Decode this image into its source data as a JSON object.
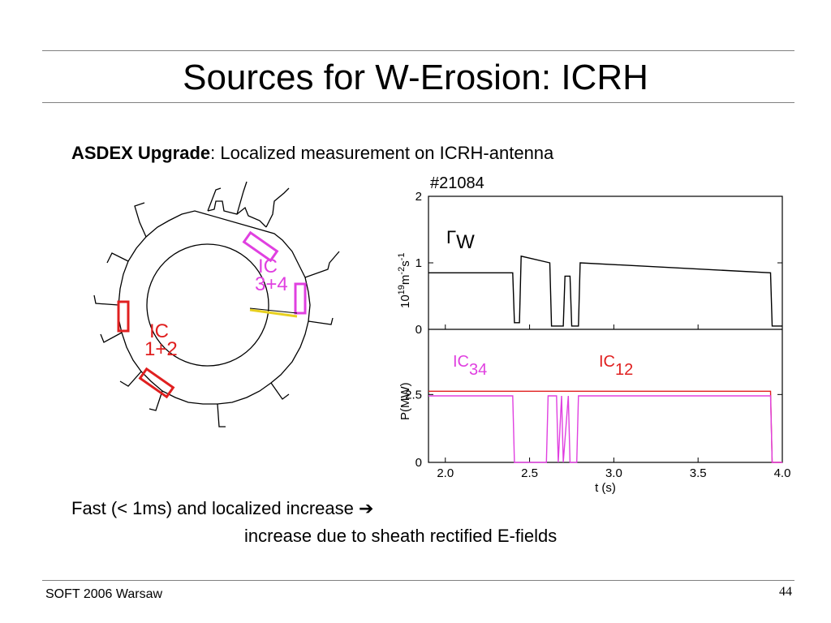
{
  "slide": {
    "title": "Sources for W-Erosion: ICRH",
    "subtitle_bold": "ASDEX Upgrade",
    "subtitle_rest": ": Localized measurement on ICRH-antenna",
    "bullet_line1": "Fast (< 1ms) and localized increase",
    "arrow_glyph": "➔",
    "bullet_line2": "increase due to sheath rectified E-fields",
    "footer_left": "SOFT 2006 Warsaw",
    "page_number": "44"
  },
  "diagram": {
    "label_ic34_line1": "IC",
    "label_ic34_line2": "3+4",
    "label_ic12_line1": "IC",
    "label_ic12_line2": "1+2",
    "antenna_color": "#e040e0",
    "antenna_color_12": "#e02020"
  },
  "chart_data": {
    "type": "line",
    "shot_label": "#21084",
    "x_tick_labels": [
      "2.0",
      "2.5",
      "3.0",
      "3.5",
      "4.0"
    ],
    "x_ticks": [
      2.0,
      2.5,
      3.0,
      3.5,
      4.0
    ],
    "xlabel": "t (s)",
    "xlim": [
      1.9,
      4.0
    ],
    "panels": [
      {
        "ylabel_main": "10",
        "ylabel_sup1": "19",
        "ylabel_unit": "m",
        "ylabel_sup2": "-2",
        "ylabel_unit2": "s",
        "ylabel_sup3": "-1",
        "y_tick_labels": [
          "0",
          "1",
          "2"
        ],
        "y_ticks": [
          0,
          1,
          2
        ],
        "ylim": [
          0,
          2
        ],
        "series_symbol": "Γ",
        "series_subscript": "W",
        "series": [
          {
            "color": "#000000",
            "t": [
              1.9,
              2.4,
              2.41,
              2.44,
              2.45,
              2.62,
              2.63,
              2.7,
              2.71,
              2.74,
              2.75,
              2.79,
              2.8,
              3.93,
              3.94,
              4.0
            ],
            "values": [
              0.85,
              0.85,
              0.1,
              0.1,
              1.1,
              1.0,
              0.05,
              0.05,
              0.8,
              0.8,
              0.05,
              0.05,
              1.0,
              0.85,
              0.05,
              0.05
            ]
          }
        ]
      },
      {
        "ylabel": "P(MW)",
        "y_tick_labels": [
          "0",
          "2.5"
        ],
        "y_ticks": [
          0,
          2.5
        ],
        "ylim": [
          0,
          4.9
        ],
        "series_labels": [
          {
            "main": "IC",
            "sub": "34",
            "color": "#e040e0"
          },
          {
            "main": "IC",
            "sub": "12",
            "color": "#e02020"
          }
        ],
        "series": [
          {
            "color": "#e02020",
            "t": [
              1.9,
              3.93,
              3.94,
              4.0
            ],
            "values": [
              2.62,
              2.62,
              0.0,
              0.0
            ]
          },
          {
            "color": "#e040e0",
            "t": [
              1.9,
              2.4,
              2.41,
              2.6,
              2.61,
              2.66,
              2.67,
              2.69,
              2.7,
              2.73,
              2.74,
              2.78,
              2.79,
              3.93,
              3.94,
              4.0
            ],
            "values": [
              2.45,
              2.45,
              0.0,
              0.0,
              2.45,
              2.45,
              0.0,
              2.45,
              0.0,
              2.45,
              0.0,
              0.0,
              2.45,
              2.45,
              0.0,
              0.0
            ]
          }
        ]
      }
    ]
  }
}
